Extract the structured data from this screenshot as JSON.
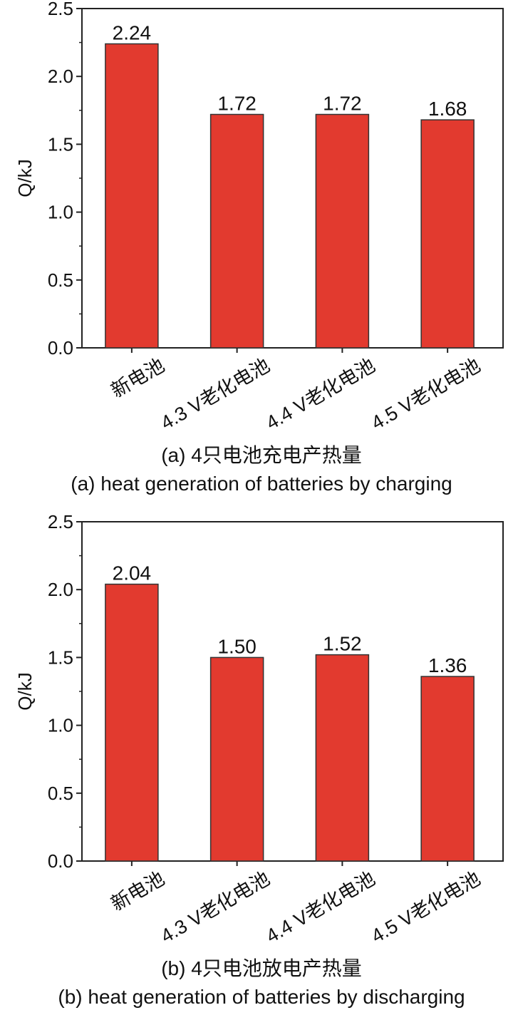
{
  "colors": {
    "bar": "#e23a2f",
    "axis": "#222222"
  },
  "chart_data": [
    {
      "type": "bar",
      "categories": [
        "新电池",
        "4.3 V老化电池",
        "4.4 V老化电池",
        "4.5 V老化电池"
      ],
      "values": [
        2.24,
        1.72,
        1.72,
        1.68
      ],
      "data_labels": [
        "2.24",
        "1.72",
        "1.72",
        "1.68"
      ],
      "ylabel": "Q/kJ",
      "ylim": [
        0,
        2.5
      ],
      "yticks": [
        "0.0",
        "0.5",
        "1.0",
        "1.5",
        "2.0",
        "2.5"
      ],
      "caption_cn": "(a) 4只电池充电产热量",
      "caption_en": "(a) heat generation of batteries by charging",
      "grid": false
    },
    {
      "type": "bar",
      "categories": [
        "新电池",
        "4.3 V老化电池",
        "4.4 V老化电池",
        "4.5 V老化电池"
      ],
      "values": [
        2.04,
        1.5,
        1.52,
        1.36
      ],
      "data_labels": [
        "2.04",
        "1.50",
        "1.52",
        "1.36"
      ],
      "ylabel": "Q/kJ",
      "ylim": [
        0,
        2.5
      ],
      "yticks": [
        "0.0",
        "0.5",
        "1.0",
        "1.5",
        "2.0",
        "2.5"
      ],
      "caption_cn": "(b) 4只电池放电产热量",
      "caption_en": "(b) heat generation of batteries by discharging",
      "grid": false
    }
  ]
}
